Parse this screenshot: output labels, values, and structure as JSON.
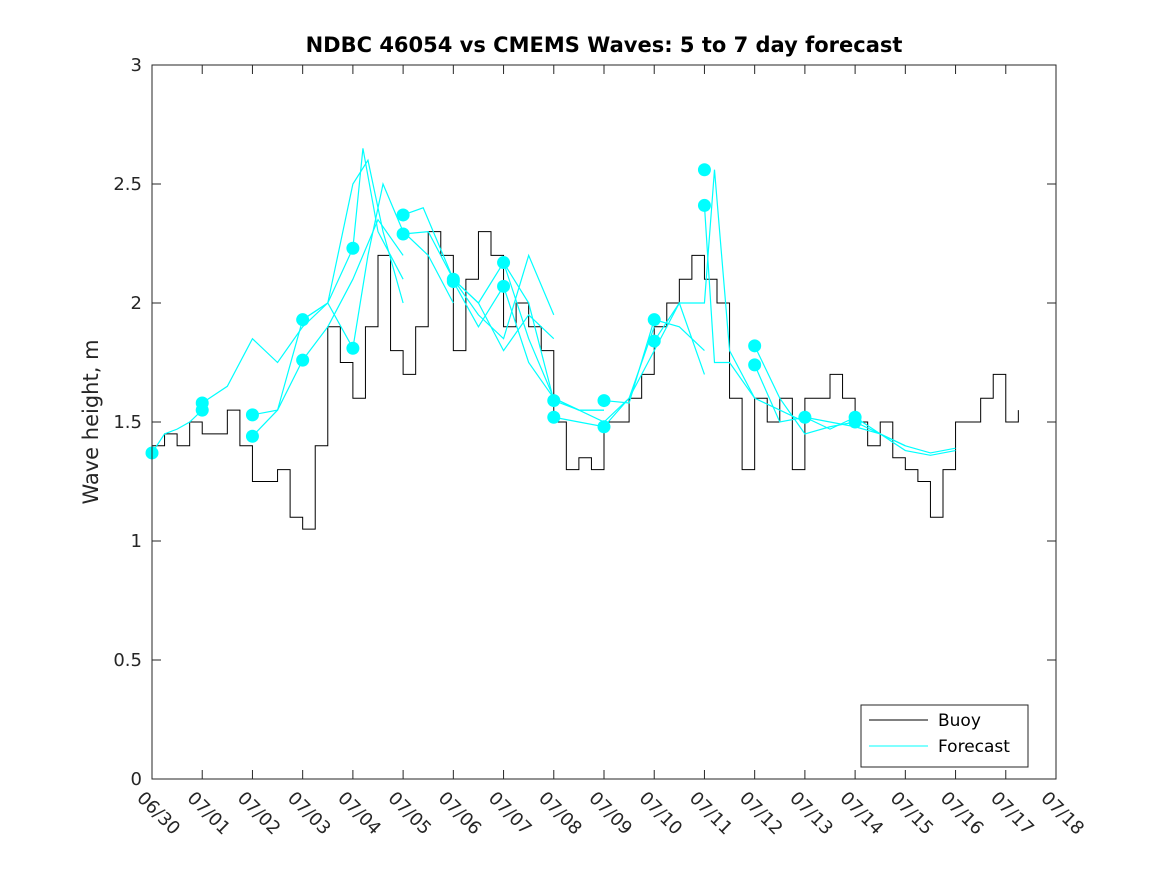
{
  "chart_data": {
    "type": "line",
    "title": "NDBC 46054 vs CMEMS Waves: 5 to 7 day forecast",
    "xlabel": "",
    "ylabel": "Wave height, m",
    "xlim": [
      "06/30",
      "07/18"
    ],
    "ylim": [
      0,
      3
    ],
    "x_ticks": [
      "06/30",
      "07/01",
      "07/02",
      "07/03",
      "07/04",
      "07/05",
      "07/06",
      "07/07",
      "07/08",
      "07/09",
      "07/10",
      "07/11",
      "07/12",
      "07/13",
      "07/14",
      "07/15",
      "07/16",
      "07/17",
      "07/18"
    ],
    "y_ticks": [
      "0",
      "0.5",
      "1",
      "1.5",
      "2",
      "2.5",
      "3"
    ],
    "x_unit": "days since 06/30",
    "grid": false,
    "legend": {
      "placement": "bottom-right",
      "entries": [
        "Buoy",
        "Forecast"
      ]
    },
    "colors": {
      "buoy": "#000000",
      "forecast": "#00FFFF"
    },
    "series": [
      {
        "name": "Buoy",
        "x": [
          0.0,
          0.25,
          0.5,
          0.75,
          1.0,
          1.25,
          1.5,
          1.75,
          2.0,
          2.25,
          2.5,
          2.75,
          3.0,
          3.25,
          3.5,
          3.75,
          4.0,
          4.25,
          4.5,
          4.75,
          5.0,
          5.25,
          5.5,
          5.75,
          6.0,
          6.25,
          6.5,
          6.75,
          7.0,
          7.25,
          7.5,
          7.75,
          8.0,
          8.25,
          8.5,
          8.75,
          9.0,
          9.25,
          9.5,
          9.75,
          10.0,
          10.25,
          10.5,
          10.75,
          11.0,
          11.25,
          11.5,
          11.75,
          12.0,
          12.25,
          12.5,
          12.75,
          13.0,
          13.25,
          13.5,
          13.75,
          14.0,
          14.25,
          14.5,
          14.75,
          15.0,
          15.25,
          15.5,
          15.75,
          16.0,
          16.25,
          16.5,
          16.75,
          17.0,
          17.25
        ],
        "y": [
          1.4,
          1.45,
          1.4,
          1.5,
          1.45,
          1.45,
          1.55,
          1.4,
          1.25,
          1.25,
          1.3,
          1.1,
          1.05,
          1.4,
          1.9,
          1.75,
          1.6,
          1.9,
          2.2,
          1.8,
          1.7,
          1.9,
          2.3,
          2.2,
          1.8,
          2.1,
          2.3,
          2.2,
          1.9,
          2.0,
          1.9,
          1.8,
          1.5,
          1.3,
          1.35,
          1.3,
          1.5,
          1.5,
          1.6,
          1.7,
          1.9,
          2.0,
          2.1,
          2.2,
          2.1,
          2.0,
          1.6,
          1.3,
          1.6,
          1.5,
          1.6,
          1.3,
          1.6,
          1.6,
          1.7,
          1.6,
          1.5,
          1.4,
          1.5,
          1.35,
          1.3,
          1.25,
          1.1,
          1.3,
          1.5,
          1.5,
          1.6,
          1.7,
          1.5,
          1.55
        ]
      },
      {
        "name": "Forecast",
        "segments": [
          {
            "x": [
              0.0,
              0.25,
              0.5,
              0.75,
              1.0
            ],
            "y": [
              1.37,
              1.45,
              1.47,
              1.5,
              1.55
            ]
          },
          {
            "x": [
              1.0,
              1.5,
              2.0,
              2.5,
              3.0,
              3.5,
              4.0,
              4.3,
              4.6,
              5.0
            ],
            "y": [
              1.58,
              1.65,
              1.85,
              1.75,
              1.9,
              2.0,
              2.5,
              2.6,
              2.3,
              2.0
            ]
          },
          {
            "x": [
              2.0,
              2.5,
              3.0,
              3.5,
              4.0,
              4.2,
              4.5,
              5.0
            ],
            "y": [
              1.53,
              1.55,
              1.93,
              2.0,
              2.23,
              2.65,
              2.3,
              2.1
            ]
          },
          {
            "x": [
              2.0,
              2.5,
              3.0,
              3.5,
              4.0,
              4.5,
              5.0
            ],
            "y": [
              1.44,
              1.55,
              1.76,
              1.9,
              2.1,
              2.35,
              2.2
            ]
          },
          {
            "x": [
              3.0,
              3.5,
              4.0,
              4.3,
              4.6,
              5.0,
              5.5,
              6.0
            ],
            "y": [
              1.93,
              2.0,
              1.81,
              2.2,
              2.5,
              2.3,
              2.2,
              2.0
            ]
          },
          {
            "x": [
              5.0,
              5.4,
              5.8,
              6.0,
              6.5,
              7.0,
              7.5,
              8.0
            ],
            "y": [
              2.37,
              2.4,
              2.2,
              2.1,
              2.0,
              1.8,
              1.95,
              1.85
            ]
          },
          {
            "x": [
              5.0,
              5.5,
              6.0,
              6.5,
              7.0,
              7.5,
              8.0
            ],
            "y": [
              2.29,
              2.3,
              2.1,
              1.95,
              1.85,
              2.2,
              1.95
            ]
          },
          {
            "x": [
              6.0,
              6.5,
              7.0,
              7.5,
              8.0,
              8.5,
              9.0
            ],
            "y": [
              2.1,
              2.0,
              2.17,
              1.85,
              1.6,
              1.55,
              1.55
            ]
          },
          {
            "x": [
              6.0,
              6.5,
              7.0,
              7.5,
              8.0,
              8.5,
              9.0
            ],
            "y": [
              2.09,
              1.9,
              2.07,
              1.75,
              1.6,
              1.55,
              1.55
            ]
          },
          {
            "x": [
              7.0,
              7.5,
              8.0,
              8.5,
              9.0,
              9.5,
              10.0
            ],
            "y": [
              2.17,
              2.0,
              1.59,
              1.55,
              1.5,
              1.6,
              1.9
            ]
          },
          {
            "x": [
              8.0,
              8.5,
              9.0,
              9.5,
              10.0,
              10.5,
              11.0
            ],
            "y": [
              1.52,
              1.5,
              1.48,
              1.6,
              1.8,
              2.0,
              1.7
            ]
          },
          {
            "x": [
              9.0,
              9.5,
              10.0,
              10.5,
              11.0
            ],
            "y": [
              1.59,
              1.58,
              1.93,
              1.9,
              1.8
            ]
          },
          {
            "x": [
              10.0,
              10.5,
              11.0,
              11.2,
              11.5,
              12.0
            ],
            "y": [
              1.84,
              2.0,
              2.0,
              2.56,
              1.8,
              1.6
            ]
          },
          {
            "x": [
              11.0,
              11.2,
              11.5,
              12.0,
              12.5,
              13.0
            ],
            "y": [
              2.41,
              1.75,
              1.75,
              1.6,
              1.55,
              1.5
            ]
          },
          {
            "x": [
              12.0,
              12.5,
              13.0,
              13.5,
              14.0
            ],
            "y": [
              1.82,
              1.6,
              1.45,
              1.48,
              1.5
            ]
          },
          {
            "x": [
              12.0,
              12.5,
              13.0,
              13.5,
              14.0
            ],
            "y": [
              1.74,
              1.5,
              1.52,
              1.47,
              1.52
            ]
          },
          {
            "x": [
              13.0,
              13.5,
              14.0,
              14.5,
              15.0
            ],
            "y": [
              1.52,
              1.5,
              1.48,
              1.45,
              1.4
            ]
          },
          {
            "x": [
              14.0,
              14.5,
              15.0,
              15.5,
              16.0
            ],
            "y": [
              1.52,
              1.45,
              1.38,
              1.36,
              1.38
            ]
          },
          {
            "x": [
              14.0,
              14.5,
              15.0,
              15.5,
              16.0
            ],
            "y": [
              1.5,
              1.45,
              1.4,
              1.37,
              1.39
            ]
          }
        ],
        "markers": [
          {
            "x": 0.0,
            "y": 1.37
          },
          {
            "x": 1.0,
            "y": 1.58
          },
          {
            "x": 1.0,
            "y": 1.55
          },
          {
            "x": 2.0,
            "y": 1.53
          },
          {
            "x": 2.0,
            "y": 1.44
          },
          {
            "x": 3.0,
            "y": 1.93
          },
          {
            "x": 3.0,
            "y": 1.76
          },
          {
            "x": 4.0,
            "y": 2.23
          },
          {
            "x": 4.0,
            "y": 1.81
          },
          {
            "x": 5.0,
            "y": 2.37
          },
          {
            "x": 5.0,
            "y": 2.29
          },
          {
            "x": 6.0,
            "y": 2.1
          },
          {
            "x": 6.0,
            "y": 2.09
          },
          {
            "x": 7.0,
            "y": 2.17
          },
          {
            "x": 7.0,
            "y": 2.07
          },
          {
            "x": 8.0,
            "y": 1.59
          },
          {
            "x": 8.0,
            "y": 1.52
          },
          {
            "x": 9.0,
            "y": 1.59
          },
          {
            "x": 9.0,
            "y": 1.48
          },
          {
            "x": 10.0,
            "y": 1.93
          },
          {
            "x": 10.0,
            "y": 1.84
          },
          {
            "x": 11.0,
            "y": 2.56
          },
          {
            "x": 11.0,
            "y": 2.41
          },
          {
            "x": 12.0,
            "y": 1.82
          },
          {
            "x": 12.0,
            "y": 1.74
          },
          {
            "x": 13.0,
            "y": 1.52
          },
          {
            "x": 14.0,
            "y": 1.52
          },
          {
            "x": 14.0,
            "y": 1.5
          }
        ]
      }
    ]
  }
}
